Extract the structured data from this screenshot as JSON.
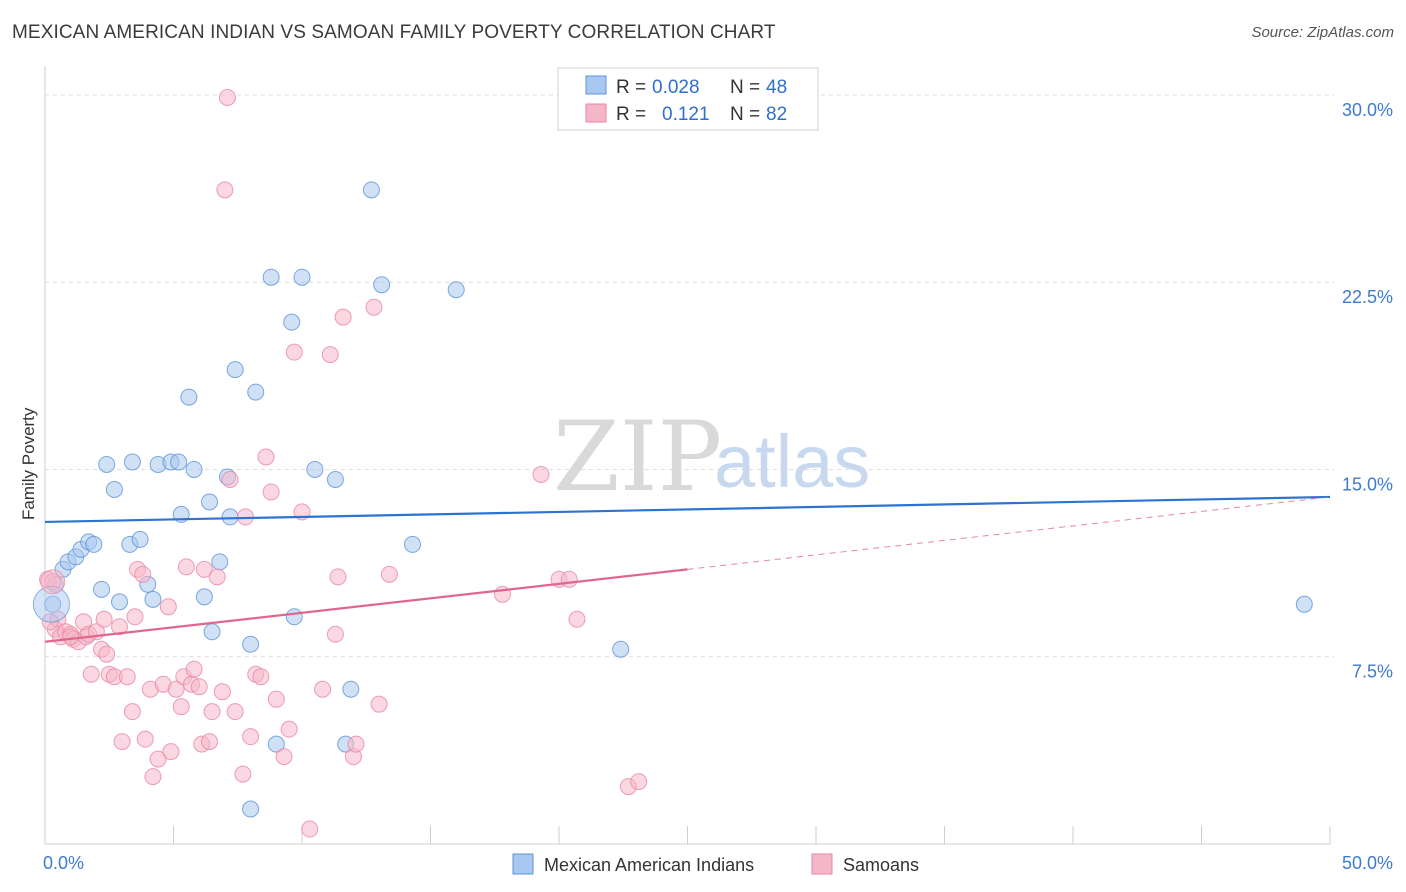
{
  "title": "MEXICAN AMERICAN INDIAN VS SAMOAN FAMILY POVERTY CORRELATION CHART",
  "source": "Source: ZipAtlas.com",
  "watermark": {
    "zip": "ZIP",
    "atlas": "atlas"
  },
  "colors": {
    "blue_fill": "#a9c8ef",
    "blue_stroke": "#5b93d8",
    "blue_line": "#2d73d2",
    "pink_fill": "#f5b6c8",
    "pink_stroke": "#e887a6",
    "pink_line": "#e06690",
    "grid": "#dcdcdc",
    "tick_label": "#3d7bd1"
  },
  "legend": {
    "r_label": "R =",
    "n_label": "N =",
    "rows": [
      {
        "r": "0.028",
        "n": "48"
      },
      {
        "r": "0.121",
        "n": "82"
      }
    ]
  },
  "chart_data": {
    "type": "scatter",
    "ylabel": "Family Poverty",
    "xlim": [
      0,
      50
    ],
    "ylim": [
      0,
      31
    ],
    "x_tick_labels": [
      "0.0%",
      "50.0%"
    ],
    "y_ticks": [
      7.5,
      15.0,
      22.5,
      30.0
    ],
    "y_tick_labels": [
      "7.5%",
      "15.0%",
      "22.5%",
      "30.0%"
    ],
    "grid": "horizontal dashed",
    "series": [
      {
        "name": "Mexican American Indians",
        "color": "#a9c8ef",
        "trend": {
          "x": [
            0,
            50
          ],
          "y": [
            12.9,
            13.9
          ]
        },
        "points": [
          [
            0.3,
            9.6
          ],
          [
            0.4,
            10.4
          ],
          [
            0.7,
            11.0
          ],
          [
            0.9,
            11.3
          ],
          [
            1.2,
            11.5
          ],
          [
            1.4,
            11.8
          ],
          [
            1.7,
            12.1
          ],
          [
            1.9,
            12.0
          ],
          [
            2.2,
            10.2
          ],
          [
            2.4,
            15.2
          ],
          [
            2.7,
            14.2
          ],
          [
            2.9,
            9.7
          ],
          [
            3.3,
            12.0
          ],
          [
            3.4,
            15.3
          ],
          [
            3.7,
            12.2
          ],
          [
            4.0,
            10.4
          ],
          [
            4.2,
            9.8
          ],
          [
            4.4,
            15.2
          ],
          [
            4.9,
            15.3
          ],
          [
            5.2,
            15.3
          ],
          [
            5.3,
            13.2
          ],
          [
            5.6,
            17.9
          ],
          [
            5.8,
            15.0
          ],
          [
            6.2,
            9.9
          ],
          [
            6.4,
            13.7
          ],
          [
            6.5,
            8.5
          ],
          [
            6.8,
            11.3
          ],
          [
            7.1,
            14.7
          ],
          [
            7.2,
            13.1
          ],
          [
            7.4,
            19.0
          ],
          [
            8.0,
            8.0
          ],
          [
            8.2,
            18.1
          ],
          [
            8.8,
            22.7
          ],
          [
            9.0,
            4.0
          ],
          [
            9.6,
            20.9
          ],
          [
            9.7,
            9.1
          ],
          [
            10.0,
            22.7
          ],
          [
            10.5,
            15.0
          ],
          [
            11.3,
            14.6
          ],
          [
            11.7,
            4.0
          ],
          [
            11.9,
            6.2
          ],
          [
            12.7,
            26.2
          ],
          [
            13.1,
            22.4
          ],
          [
            14.3,
            12.0
          ],
          [
            16.0,
            22.2
          ],
          [
            8.0,
            1.4
          ],
          [
            22.4,
            7.8
          ],
          [
            49.0,
            9.6
          ]
        ]
      },
      {
        "name": "Samoans",
        "color": "#f5b6c8",
        "trend": {
          "x": [
            0,
            25
          ],
          "y": [
            8.1,
            11.0
          ],
          "dashed_x": [
            25,
            50
          ],
          "dashed_y": [
            11.0,
            13.9
          ]
        },
        "points": [
          [
            0.1,
            10.6
          ],
          [
            0.3,
            10.5
          ],
          [
            0.4,
            8.6
          ],
          [
            0.5,
            9.0
          ],
          [
            0.6,
            8.3
          ],
          [
            0.8,
            8.5
          ],
          [
            1.0,
            8.4
          ],
          [
            1.1,
            8.2
          ],
          [
            1.3,
            8.1
          ],
          [
            1.5,
            8.9
          ],
          [
            1.6,
            8.3
          ],
          [
            1.7,
            8.4
          ],
          [
            1.8,
            6.8
          ],
          [
            2.0,
            8.5
          ],
          [
            2.2,
            7.8
          ],
          [
            2.3,
            9.0
          ],
          [
            2.4,
            7.6
          ],
          [
            2.5,
            6.8
          ],
          [
            2.7,
            6.7
          ],
          [
            2.9,
            8.7
          ],
          [
            3.0,
            4.1
          ],
          [
            3.2,
            6.7
          ],
          [
            3.4,
            5.3
          ],
          [
            3.5,
            9.1
          ],
          [
            3.6,
            11.0
          ],
          [
            3.8,
            10.8
          ],
          [
            3.9,
            4.2
          ],
          [
            4.1,
            6.2
          ],
          [
            4.2,
            2.7
          ],
          [
            4.4,
            3.4
          ],
          [
            4.6,
            6.4
          ],
          [
            4.8,
            9.5
          ],
          [
            4.9,
            3.7
          ],
          [
            5.1,
            6.2
          ],
          [
            5.3,
            5.5
          ],
          [
            5.4,
            6.7
          ],
          [
            5.5,
            11.1
          ],
          [
            5.7,
            6.4
          ],
          [
            5.8,
            7.0
          ],
          [
            6.0,
            6.3
          ],
          [
            6.1,
            4.0
          ],
          [
            6.2,
            11.0
          ],
          [
            6.4,
            4.1
          ],
          [
            6.5,
            5.3
          ],
          [
            6.7,
            10.7
          ],
          [
            6.9,
            6.1
          ],
          [
            7.2,
            14.6
          ],
          [
            7.4,
            5.3
          ],
          [
            7.7,
            2.8
          ],
          [
            7.8,
            13.1
          ],
          [
            8.0,
            4.3
          ],
          [
            8.2,
            6.8
          ],
          [
            8.4,
            6.7
          ],
          [
            8.6,
            15.5
          ],
          [
            8.8,
            14.1
          ],
          [
            9.0,
            5.8
          ],
          [
            9.3,
            3.5
          ],
          [
            9.5,
            4.6
          ],
          [
            9.7,
            19.7
          ],
          [
            10.0,
            13.3
          ],
          [
            10.3,
            0.6
          ],
          [
            10.8,
            6.2
          ],
          [
            11.1,
            19.6
          ],
          [
            11.3,
            8.4
          ],
          [
            11.4,
            10.7
          ],
          [
            11.6,
            21.1
          ],
          [
            12.0,
            3.5
          ],
          [
            12.1,
            4.0
          ],
          [
            12.8,
            21.5
          ],
          [
            13.0,
            5.6
          ],
          [
            13.4,
            10.8
          ],
          [
            17.8,
            10.0
          ],
          [
            19.3,
            14.8
          ],
          [
            20.0,
            10.6
          ],
          [
            20.4,
            10.6
          ],
          [
            20.7,
            9.0
          ],
          [
            22.7,
            2.3
          ],
          [
            23.1,
            2.5
          ],
          [
            7.1,
            29.9
          ],
          [
            7.0,
            26.2
          ],
          [
            0.2,
            8.9
          ],
          [
            1.0,
            8.3
          ]
        ]
      }
    ]
  },
  "bottom_legend": [
    "Mexican American Indians",
    "Samoans"
  ]
}
